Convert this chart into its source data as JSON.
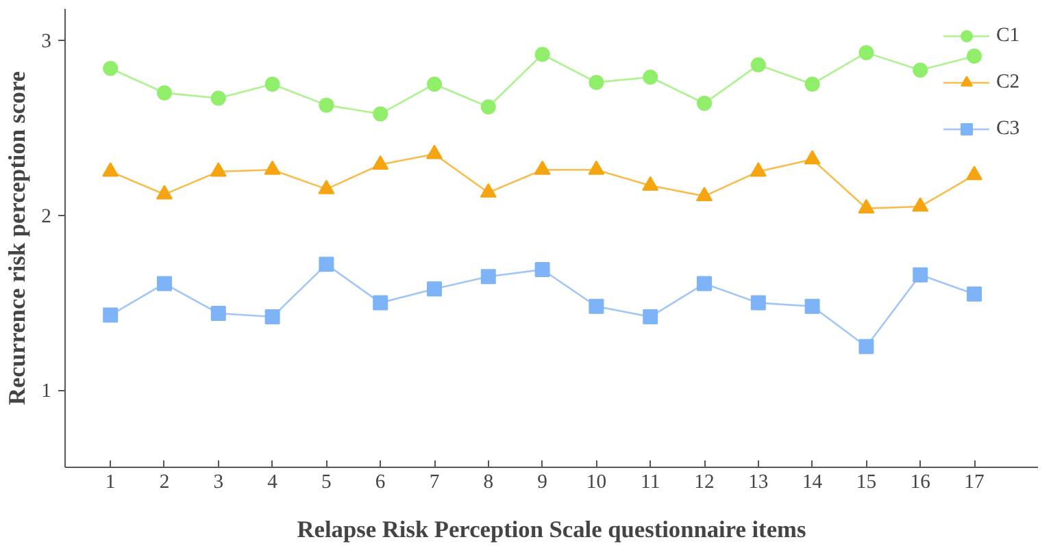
{
  "chart_data": {
    "type": "line",
    "xlabel": "Relapse Risk Perception Scale questionnaire items",
    "ylabel": "Recurrence risk perception score",
    "x": [
      1,
      2,
      3,
      4,
      5,
      6,
      7,
      8,
      9,
      10,
      11,
      12,
      13,
      14,
      15,
      16,
      17
    ],
    "xlim": [
      0.16,
      18.18
    ],
    "xticks": [
      1,
      2,
      3,
      4,
      5,
      6,
      7,
      8,
      9,
      10,
      11,
      12,
      13,
      14,
      15,
      16,
      17
    ],
    "ylim": [
      0.56,
      3.18
    ],
    "yticks": [
      1,
      2,
      3
    ],
    "grid": false,
    "legend": "top right",
    "series": [
      {
        "name": "C1",
        "color": "#90ee6a",
        "marker": "circle",
        "values": [
          2.84,
          2.7,
          2.67,
          2.75,
          2.63,
          2.58,
          2.75,
          2.62,
          2.92,
          2.76,
          2.79,
          2.64,
          2.86,
          2.75,
          2.93,
          2.83,
          2.91
        ]
      },
      {
        "name": "C2",
        "color": "#f5a511",
        "marker": "triangle",
        "values": [
          2.25,
          2.12,
          2.25,
          2.26,
          2.15,
          2.29,
          2.35,
          2.13,
          2.26,
          2.26,
          2.17,
          2.11,
          2.25,
          2.32,
          2.04,
          2.05,
          2.23
        ]
      },
      {
        "name": "C3",
        "color": "#7fb3f7",
        "marker": "square",
        "values": [
          1.43,
          1.61,
          1.44,
          1.42,
          1.72,
          1.5,
          1.58,
          1.65,
          1.69,
          1.48,
          1.42,
          1.61,
          1.5,
          1.48,
          1.25,
          1.66,
          1.55
        ]
      }
    ]
  }
}
